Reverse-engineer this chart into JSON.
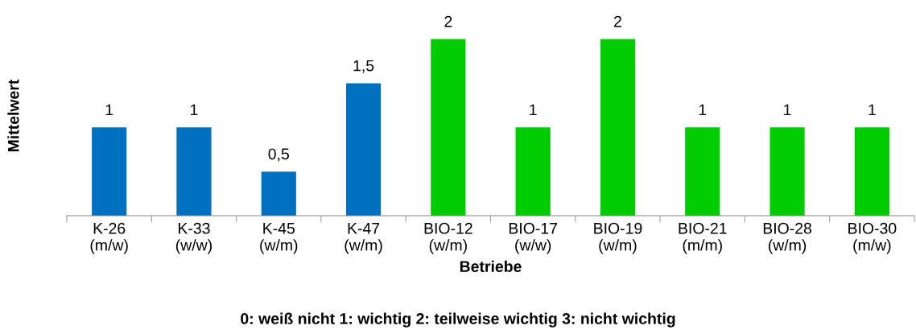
{
  "chart_data": {
    "type": "bar",
    "ylabel": "Mittelwert",
    "xlabel": "Betriebe",
    "annotations": [
      "0: weiß nicht 1: wichtig 2: teilweise wichtig 3: nicht wichtig"
    ],
    "categories": [
      "K-26\n(m/w)",
      "K-33\n(w/w)",
      "K-45\n(w/m)",
      "K-47\n(w/m)",
      "BIO-12\n(w/m)",
      "BIO-17\n(w/w)",
      "BIO-19\n(w/m)",
      "BIO-21\n(m/m)",
      "BIO-28\n(w/m)",
      "BIO-30\n(m/w)"
    ],
    "values": [
      1,
      1,
      0.5,
      1.5,
      2,
      1,
      2,
      1,
      1,
      1
    ],
    "colors": [
      "#0070c0",
      "#0070c0",
      "#0070c0",
      "#0070c0",
      "#00cc00",
      "#00cc00",
      "#00cc00",
      "#00cc00",
      "#00cc00",
      "#00cc00"
    ],
    "value_labels": [
      "1",
      "1",
      "0,5",
      "1,5",
      "2",
      "1",
      "2",
      "1",
      "1",
      "1"
    ],
    "grid": false,
    "legend": false
  }
}
